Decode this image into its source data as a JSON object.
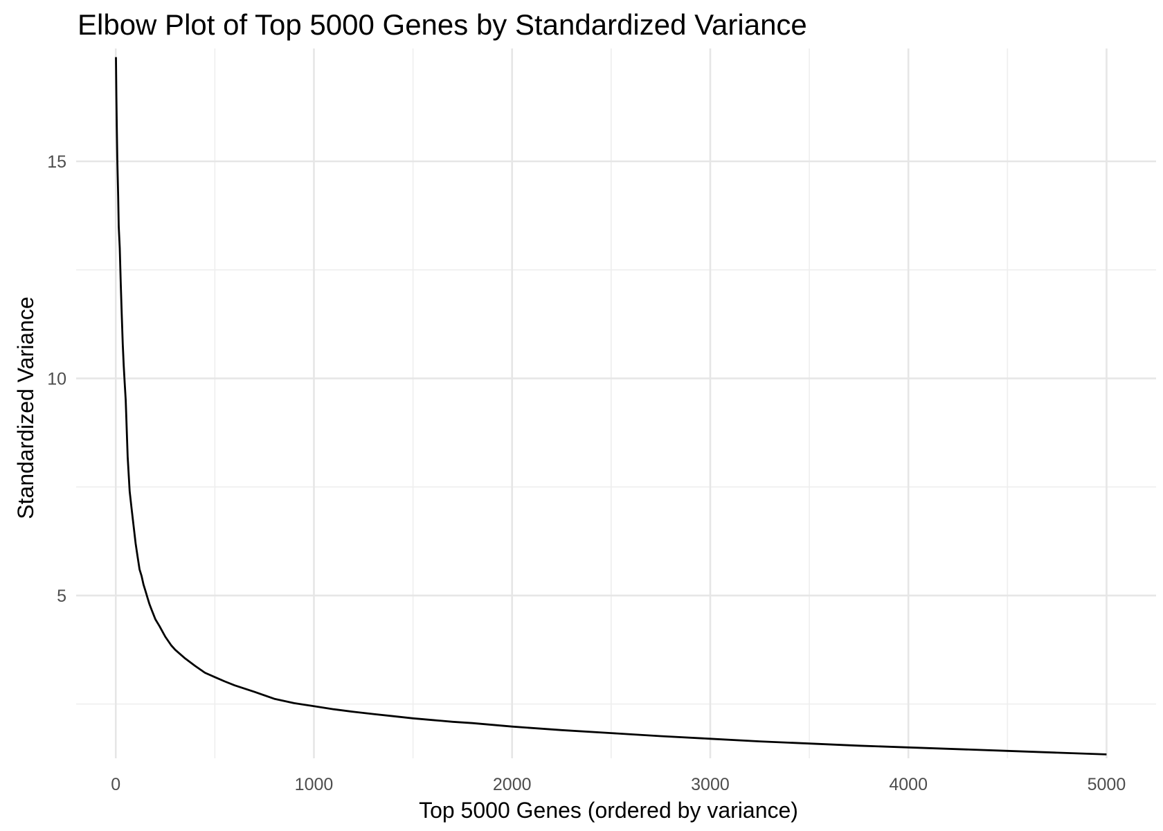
{
  "chart_data": {
    "type": "line",
    "title": "Elbow Plot of Top 5000 Genes by Standardized Variance",
    "xlabel": "Top 5000 Genes (ordered by variance)",
    "ylabel": "Standardized Variance",
    "xlim": [
      -200,
      5250
    ],
    "ylim": [
      1.25,
      17.6
    ],
    "x_ticks": [
      0,
      1000,
      2000,
      3000,
      4000,
      5000
    ],
    "x_tick_labels": [
      "0",
      "1000",
      "2000",
      "3000",
      "4000",
      "5000"
    ],
    "x_minor_ticks": [
      500,
      1500,
      2500,
      3500,
      4500
    ],
    "y_ticks": [
      5,
      10,
      15
    ],
    "y_tick_labels": [
      "5",
      "10",
      "15"
    ],
    "y_minor_ticks": [
      2.5,
      7.5,
      12.5
    ],
    "grid": true,
    "line_color": "#000000",
    "series": [
      {
        "name": "Standardized Variance",
        "x": [
          1,
          3,
          5,
          8,
          12,
          15,
          20,
          25,
          30,
          35,
          40,
          45,
          50,
          60,
          70,
          80,
          90,
          100,
          110,
          120,
          130,
          140,
          150,
          160,
          170,
          180,
          200,
          220,
          250,
          280,
          300,
          350,
          400,
          450,
          500,
          550,
          600,
          700,
          800,
          900,
          1000,
          1100,
          1200,
          1300,
          1400,
          1500,
          1600,
          1700,
          1800,
          1900,
          2000,
          2250,
          2500,
          2750,
          3000,
          3250,
          3500,
          3750,
          4000,
          4250,
          4500,
          4750,
          5000
        ],
        "y": [
          17.4,
          16.5,
          15.8,
          15.0,
          14.2,
          13.5,
          13.0,
          12.2,
          11.5,
          10.8,
          10.3,
          9.9,
          9.5,
          8.2,
          7.4,
          7.0,
          6.6,
          6.2,
          5.9,
          5.6,
          5.45,
          5.25,
          5.1,
          4.95,
          4.8,
          4.68,
          4.45,
          4.3,
          4.05,
          3.85,
          3.75,
          3.55,
          3.38,
          3.22,
          3.12,
          3.02,
          2.93,
          2.78,
          2.62,
          2.52,
          2.45,
          2.38,
          2.32,
          2.27,
          2.22,
          2.17,
          2.13,
          2.09,
          2.06,
          2.02,
          1.98,
          1.9,
          1.83,
          1.76,
          1.7,
          1.64,
          1.59,
          1.54,
          1.5,
          1.46,
          1.42,
          1.38,
          1.34
        ]
      }
    ]
  }
}
